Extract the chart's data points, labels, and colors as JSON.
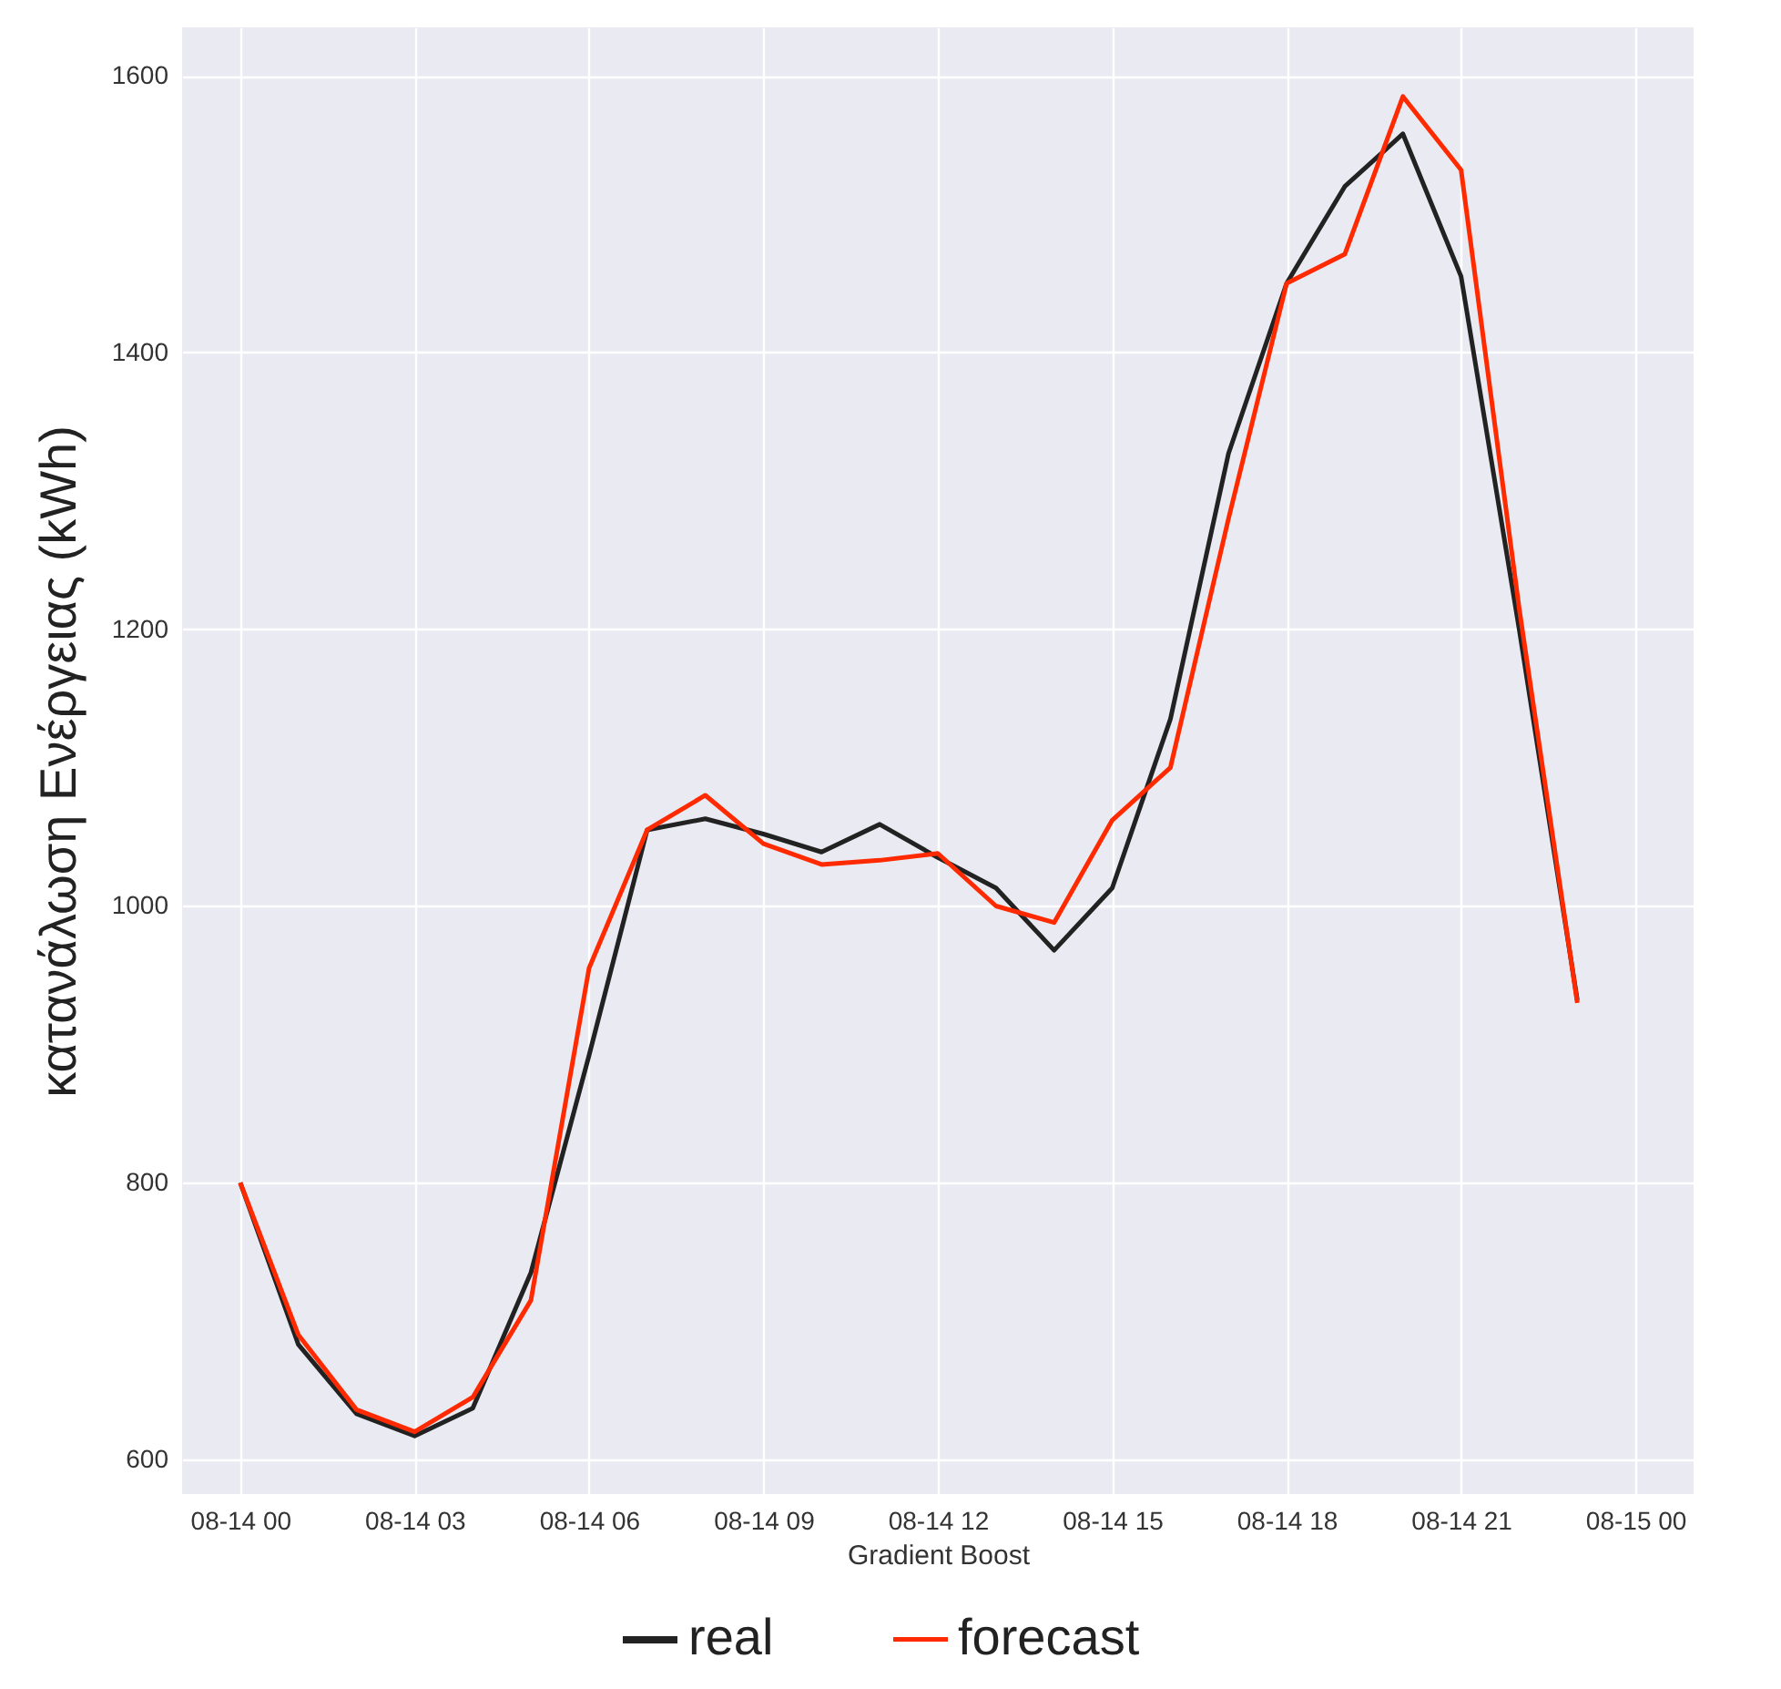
{
  "chart_data": {
    "type": "line",
    "xlabel": "Gradient Boost",
    "ylabel": "κατανάλωση Ενέργειας (kWh)",
    "categories": [
      "08-14 00",
      null,
      null,
      "08-14 03",
      null,
      null,
      "08-14 06",
      null,
      null,
      "08-14 09",
      null,
      null,
      "08-14 12",
      null,
      null,
      "08-14 15",
      null,
      null,
      "08-14 18",
      null,
      null,
      "08-14 21",
      null,
      null,
      "08-15 00"
    ],
    "series": [
      {
        "name": "real",
        "color": "#222222",
        "values": [
          800,
          683,
          633,
          617,
          637,
          735,
          892,
          1055,
          1063,
          1052,
          1039,
          1059,
          1035,
          1013,
          968,
          1013,
          1135,
          1327,
          1450,
          1520,
          1558,
          1455,
          1200,
          932,
          null
        ]
      },
      {
        "name": "forecast",
        "color": "#ff2a00",
        "values": [
          800,
          690,
          636,
          620,
          645,
          715,
          955,
          1055,
          1080,
          1045,
          1030,
          1033,
          1038,
          1000,
          988,
          1062,
          1100,
          1280,
          1450,
          1471,
          1585,
          1532,
          1215,
          930,
          null
        ]
      }
    ],
    "ylim": [
      575,
      1635
    ],
    "yticks": [
      600,
      800,
      1000,
      1200,
      1400,
      1600
    ],
    "grid": true,
    "legend": "bottom",
    "marker": "none",
    "line_style": "solid"
  }
}
